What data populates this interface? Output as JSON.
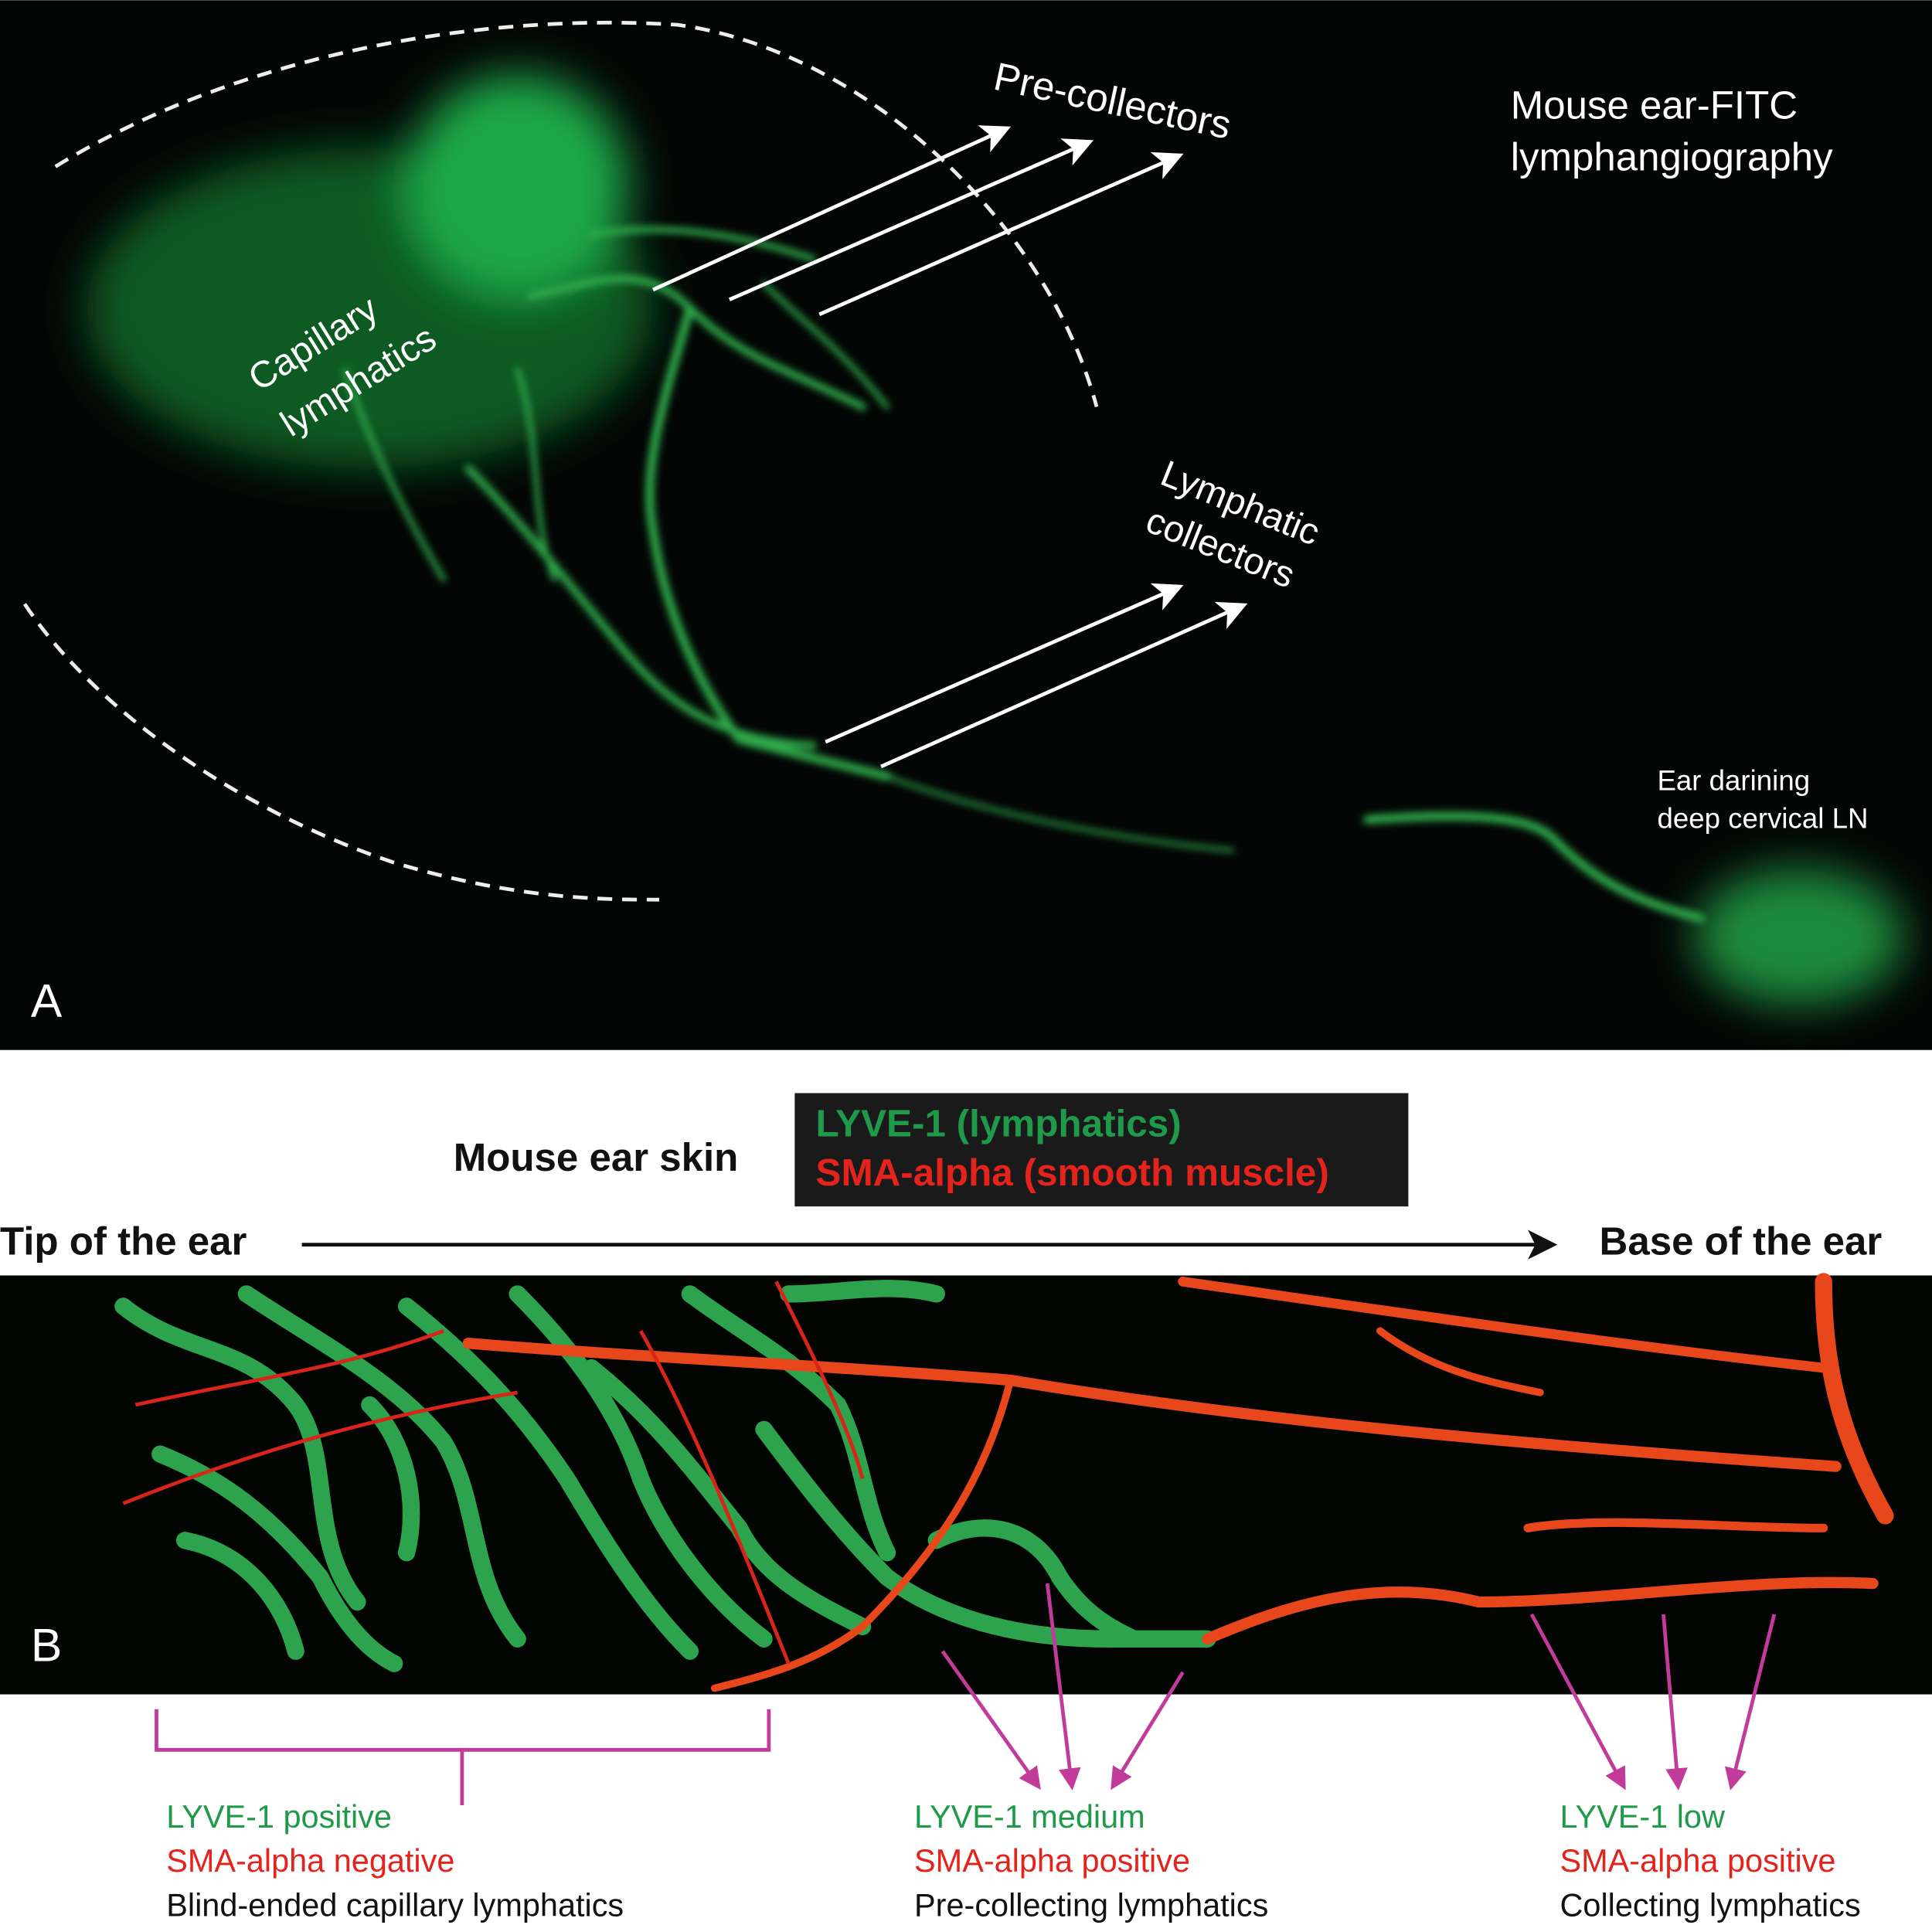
{
  "panel_a": {
    "letter": "A",
    "title_lines": [
      "Mouse ear-FITC",
      "lymphangiography"
    ],
    "pre_collectors": "Pre-collectors",
    "capillary_lines": [
      "Capillary",
      "lymphatics"
    ],
    "collector_lines": [
      "Lymphatic",
      "collectors"
    ],
    "ln_lines": [
      "Ear darining",
      "deep cervical LN"
    ]
  },
  "panel_b": {
    "letter": "B",
    "heading": "Mouse ear skin",
    "legend": [
      "LYVE-1 (lymphatics)",
      "SMA-alpha (smooth muscle)"
    ],
    "tip": "Tip of the ear",
    "base": "Base of the ear",
    "groups": [
      [
        "LYVE-1 positive",
        "SMA-alpha negative",
        "Blind-ended capillary lymphatics"
      ],
      [
        "LYVE-1 medium",
        "SMA-alpha positive",
        "Pre-collecting lymphatics"
      ],
      [
        "LYVE-1 low",
        "SMA-alpha positive",
        "Collecting lymphatics"
      ]
    ]
  }
}
